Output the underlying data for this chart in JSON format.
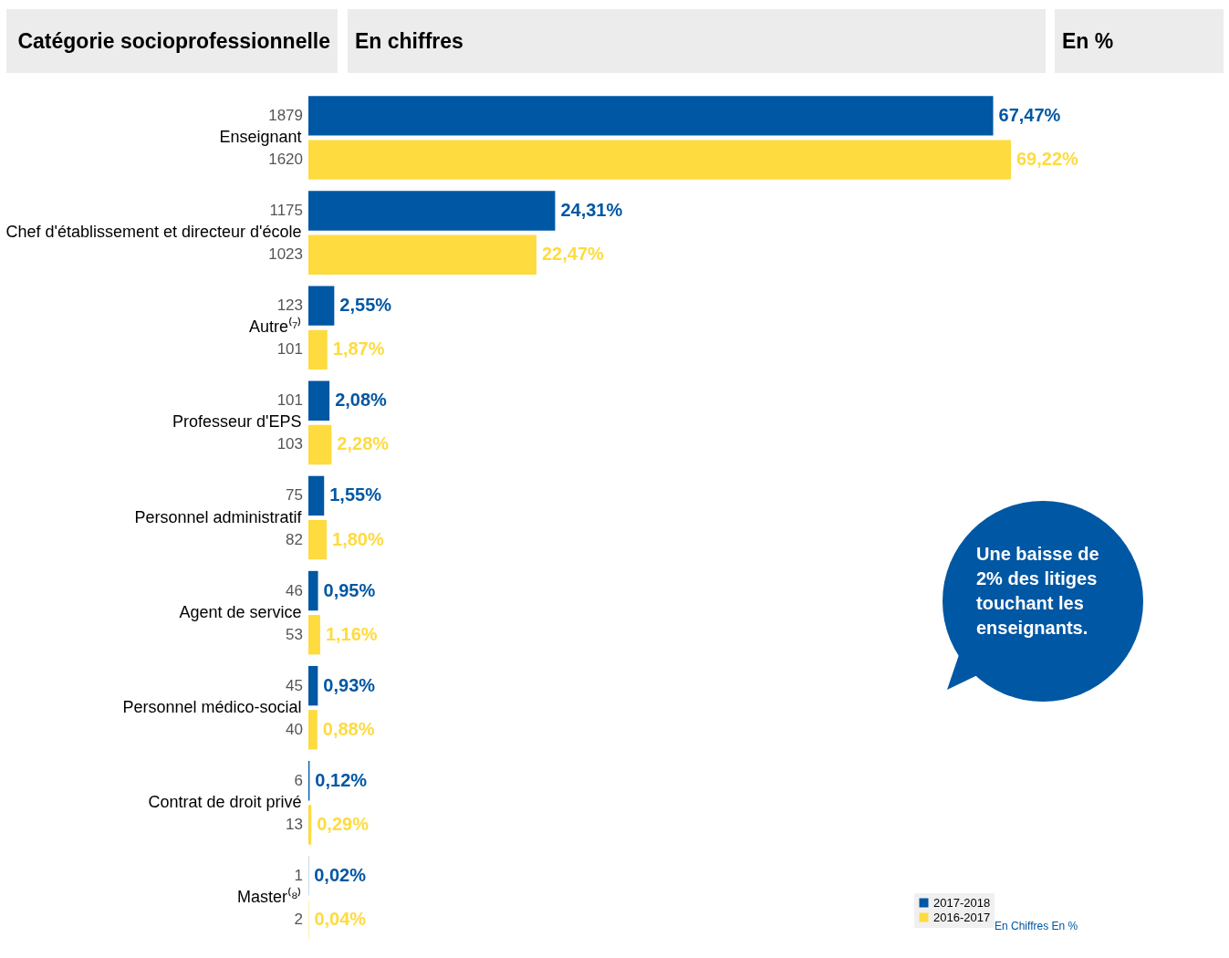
{
  "chart_data": {
    "type": "bar",
    "orientation": "horizontal",
    "legend": "bottom right",
    "categories": [
      "Enseignant",
      "Chef d'établissement et directeur d'école",
      "Autre⁽⁷⁾",
      "Professeur d'EPS",
      "Personnel administratif",
      "Agent de service",
      "Personnel médico-social",
      "Contrat de droit privé",
      "Master⁽⁸⁾"
    ],
    "series": [
      {
        "name": "2017-2018",
        "color": "#0057a3",
        "values": [
          67.47,
          24.31,
          2.55,
          2.08,
          1.55,
          0.95,
          0.93,
          0.12,
          0.02
        ],
        "value_labels": [
          "67,47%",
          "24,31%",
          "2,55%",
          "2,08%",
          "1,55%",
          "0,95%",
          "0,93%",
          "0,12%",
          "0,02%"
        ]
      },
      {
        "name": "2016-2017",
        "color": "#fedb3f",
        "values": [
          69.22,
          22.47,
          1.87,
          2.28,
          1.8,
          1.16,
          0.88,
          0.29,
          0.04
        ],
        "value_labels": [
          "69,22%",
          "22,47%",
          "1,87%",
          "2,28%",
          "1,80%",
          "1,16%",
          "0,88%",
          "0,29%",
          "0,04%"
        ]
      }
    ],
    "annotations": [
      "Catégorie socioprofessionnelle",
      "En chiffres",
      "En %",
      "Une baisse de 2% des litiges touchant les enseignants.",
      "En Chiffres En %",
      "1879",
      "1620",
      "1175",
      "1023",
      "123",
      "101",
      "101",
      "103",
      "75",
      "82",
      "46",
      "53",
      "45",
      "40",
      "6",
      "13",
      "1",
      "2"
    ]
  }
}
